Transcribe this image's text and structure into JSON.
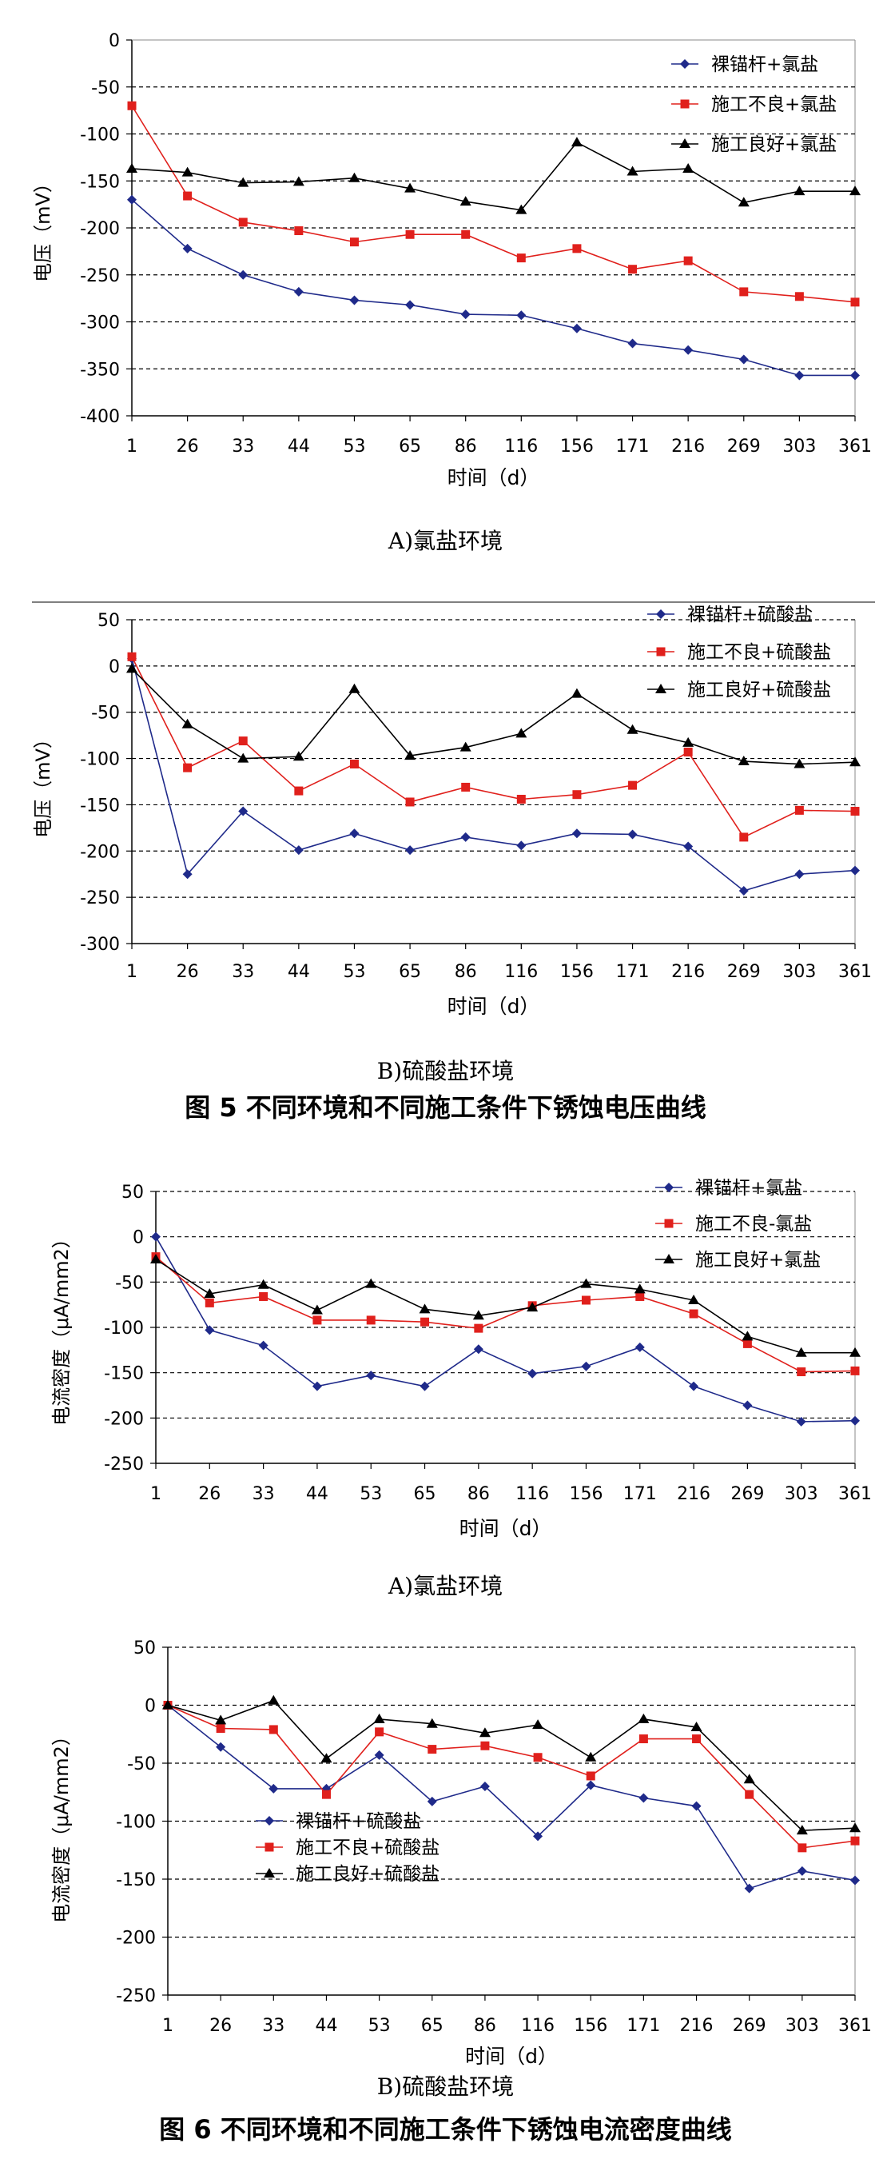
{
  "figure5": {
    "caption": "图 5   不同环境和不同施工条件下锈蚀电压曲线",
    "charts": [
      {
        "sublabel": "A)氯盐环境",
        "ylabel": "电压（mV）",
        "xlabel": "时间（d）",
        "categories": [
          "1",
          "26",
          "33",
          "44",
          "53",
          "65",
          "86",
          "116",
          "156",
          "171",
          "216",
          "269",
          "303",
          "361"
        ],
        "yticks": [
          "0",
          "-50",
          "-100",
          "-150",
          "-200",
          "-250",
          "-300",
          "-350",
          "-400"
        ],
        "legend": [
          "裸锚杆+氯盐",
          "施工不良+氯盐",
          "施工良好+氯盐"
        ]
      },
      {
        "sublabel": "B)硫酸盐环境",
        "ylabel": "电压（mV）",
        "xlabel": "时间（d）",
        "categories": [
          "1",
          "26",
          "33",
          "44",
          "53",
          "65",
          "86",
          "116",
          "156",
          "171",
          "216",
          "269",
          "303",
          "361"
        ],
        "yticks": [
          "50",
          "0",
          "-50",
          "-100",
          "-150",
          "-200",
          "-250",
          "-300"
        ],
        "legend": [
          "裸锚杆+硫酸盐",
          "施工不良+硫酸盐",
          "施工良好+硫酸盐"
        ]
      }
    ]
  },
  "figure6": {
    "caption": "图 6  不同环境和不同施工条件下锈蚀电流密度曲线",
    "charts": [
      {
        "sublabel": "A)氯盐环境",
        "ylabel": "电流密度（μA/mm2）",
        "xlabel": "时间（d）",
        "categories": [
          "1",
          "26",
          "33",
          "44",
          "53",
          "65",
          "86",
          "116",
          "156",
          "171",
          "216",
          "269",
          "303",
          "361"
        ],
        "yticks": [
          "50",
          "0",
          "-50",
          "-100",
          "-150",
          "-200",
          "-250"
        ],
        "legend": [
          "裸锚杆+氯盐",
          "施工不良-氯盐",
          "施工良好+氯盐"
        ]
      },
      {
        "sublabel": "B)硫酸盐环境",
        "ylabel": "电流密度（μA/mm2）",
        "xlabel": "时间（d）",
        "categories": [
          "1",
          "26",
          "33",
          "44",
          "53",
          "65",
          "86",
          "116",
          "156",
          "171",
          "216",
          "269",
          "303",
          "361"
        ],
        "yticks": [
          "50",
          "0",
          "-50",
          "-100",
          "-150",
          "-200",
          "-250"
        ],
        "legend": [
          "裸锚杆+硫酸盐",
          "施工不良+硫酸盐",
          "施工良好+硫酸盐"
        ]
      }
    ]
  },
  "chart_data": [
    {
      "type": "line",
      "categories": [
        "1",
        "26",
        "33",
        "44",
        "53",
        "65",
        "86",
        "116",
        "156",
        "171",
        "216",
        "269",
        "303",
        "361"
      ],
      "xlabel": "时间（d）",
      "ylabel": "电压（mV）",
      "ylim": [
        -400,
        0
      ],
      "grid": "dashed horizontal",
      "legend_position": "top-right",
      "series": [
        {
          "name": "裸锚杆+氯盐",
          "color": "#1f2a8a",
          "marker": "diamond",
          "values": [
            -170,
            -222,
            -250,
            -268,
            -277,
            -282,
            -292,
            -293,
            -307,
            -323,
            -330,
            -340,
            -357,
            -357
          ]
        },
        {
          "name": "施工不良+氯盐",
          "color": "#e0201c",
          "marker": "square",
          "values": [
            -70,
            -166,
            -194,
            -203,
            -215,
            -207,
            -207,
            -232,
            -222,
            -244,
            -235,
            -268,
            -273,
            -279
          ]
        },
        {
          "name": "施工良好+氯盐",
          "color": "#000000",
          "marker": "triangle",
          "values": [
            -137,
            -141,
            -152,
            -151,
            -147,
            -158,
            -172,
            -181,
            -109,
            -140,
            -137,
            -173,
            -161,
            -161
          ]
        }
      ]
    },
    {
      "type": "line",
      "categories": [
        "1",
        "26",
        "33",
        "44",
        "53",
        "65",
        "86",
        "116",
        "156",
        "171",
        "216",
        "269",
        "303",
        "361"
      ],
      "xlabel": "时间（d）",
      "ylabel": "电压（mV）",
      "ylim": [
        -300,
        50
      ],
      "grid": "dashed horizontal",
      "legend_position": "top-right",
      "series": [
        {
          "name": "裸锚杆+硫酸盐",
          "color": "#1f2a8a",
          "marker": "diamond",
          "values": [
            8,
            -225,
            -157,
            -199,
            -181,
            -199,
            -185,
            -194,
            -181,
            -182,
            -195,
            -243,
            -225,
            -221
          ]
        },
        {
          "name": "施工不良+硫酸盐",
          "color": "#e0201c",
          "marker": "square",
          "values": [
            10,
            -110,
            -81,
            -135,
            -106,
            -147,
            -131,
            -144,
            -139,
            -129,
            -93,
            -185,
            -156,
            -157
          ]
        },
        {
          "name": "施工良好+硫酸盐",
          "color": "#000000",
          "marker": "triangle",
          "values": [
            -3,
            -63,
            -100,
            -98,
            -25,
            -97,
            -88,
            -73,
            -30,
            -69,
            -83,
            -103,
            -106,
            -104
          ]
        }
      ]
    },
    {
      "type": "line",
      "categories": [
        "1",
        "26",
        "33",
        "44",
        "53",
        "65",
        "86",
        "116",
        "156",
        "171",
        "216",
        "269",
        "303",
        "361"
      ],
      "xlabel": "时间（d）",
      "ylabel": "电流密度（μA/mm2）",
      "ylim": [
        -250,
        50
      ],
      "grid": "dashed horizontal",
      "legend_position": "top-right",
      "series": [
        {
          "name": "裸锚杆+氯盐",
          "color": "#1f2a8a",
          "marker": "diamond",
          "values": [
            0,
            -103,
            -120,
            -165,
            -153,
            -165,
            -124,
            -151,
            -143,
            -122,
            -165,
            -186,
            -204,
            -203
          ]
        },
        {
          "name": "施工不良-氯盐",
          "color": "#e0201c",
          "marker": "square",
          "values": [
            -22,
            -73,
            -66,
            -92,
            -92,
            -94,
            -101,
            -76,
            -70,
            -66,
            -85,
            -118,
            -149,
            -148
          ]
        },
        {
          "name": "施工良好+氯盐",
          "color": "#000000",
          "marker": "triangle",
          "values": [
            -25,
            -63,
            -53,
            -81,
            -52,
            -80,
            -87,
            -78,
            -52,
            -58,
            -70,
            -110,
            -128,
            -128
          ]
        }
      ]
    },
    {
      "type": "line",
      "categories": [
        "1",
        "26",
        "33",
        "44",
        "53",
        "65",
        "86",
        "116",
        "156",
        "171",
        "216",
        "269",
        "303",
        "361"
      ],
      "xlabel": "时间（d）",
      "ylabel": "电流密度（μA/mm2）",
      "ylim": [
        -250,
        50
      ],
      "grid": "dashed horizontal",
      "legend_position": "bottom-left",
      "series": [
        {
          "name": "裸锚杆+硫酸盐",
          "color": "#1f2a8a",
          "marker": "diamond",
          "values": [
            0,
            -36,
            -72,
            -72,
            -43,
            -83,
            -70,
            -113,
            -69,
            -80,
            -87,
            -158,
            -143,
            -151
          ]
        },
        {
          "name": "施工不良+硫酸盐",
          "color": "#e0201c",
          "marker": "square",
          "values": [
            0,
            -20,
            -21,
            -77,
            -23,
            -38,
            -35,
            -45,
            -61,
            -29,
            -29,
            -77,
            -123,
            -117
          ]
        },
        {
          "name": "施工良好+硫酸盐",
          "color": "#000000",
          "marker": "triangle",
          "values": [
            0,
            -13,
            4,
            -46,
            -12,
            -16,
            -24,
            -17,
            -45,
            -12,
            -19,
            -64,
            -108,
            -106
          ]
        }
      ]
    }
  ]
}
